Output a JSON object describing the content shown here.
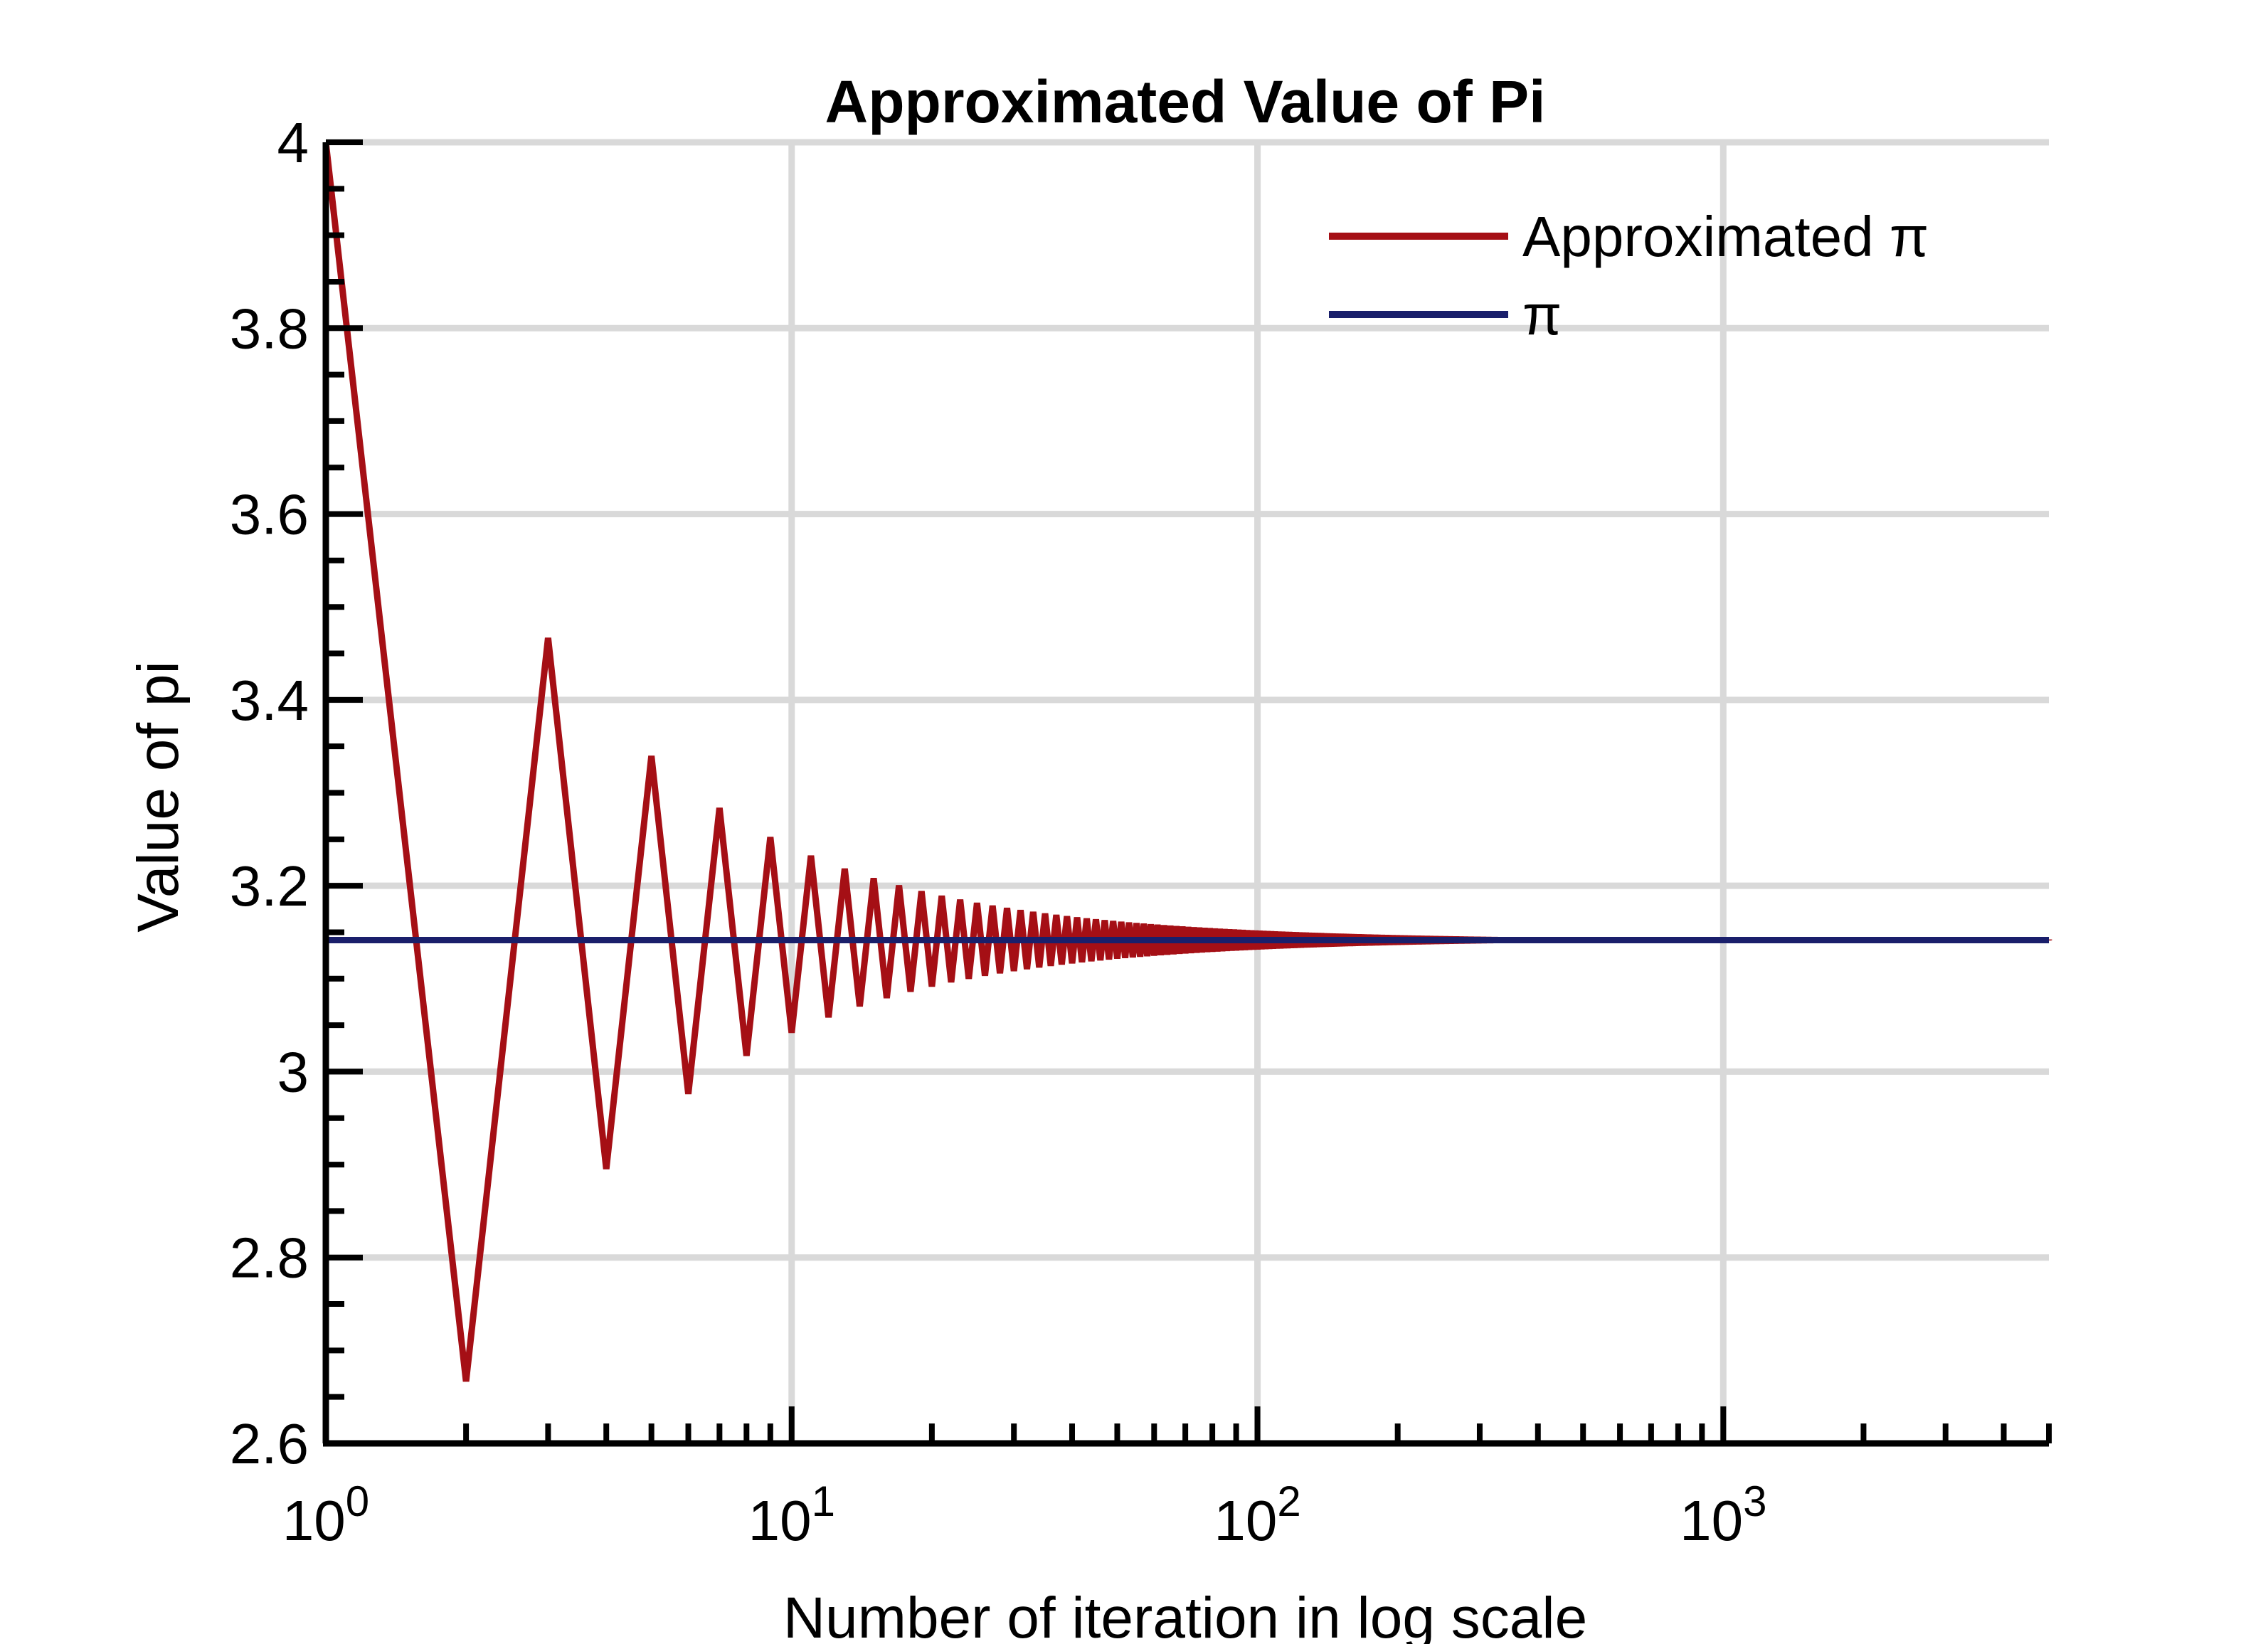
{
  "chart_data": {
    "type": "line",
    "title": "Approximated Value of Pi",
    "xlabel": "Number of iteration in log scale",
    "ylabel": "Value of pi",
    "x_scale": "log",
    "xlim": [
      1,
      5000
    ],
    "ylim": [
      2.6,
      4.0
    ],
    "x_ticks": [
      {
        "base": "10",
        "exp": "0",
        "value": 1
      },
      {
        "base": "10",
        "exp": "1",
        "value": 10
      },
      {
        "base": "10",
        "exp": "2",
        "value": 100
      },
      {
        "base": "10",
        "exp": "3",
        "value": 1000
      }
    ],
    "y_ticks": [
      "2.6",
      "2.8",
      "3",
      "3.2",
      "3.4",
      "3.6",
      "3.8",
      "4"
    ],
    "grid": true,
    "legend_position": "top-right",
    "series": [
      {
        "name": "Approximated π",
        "color": "#a50f15",
        "formula": "Leibniz partial sums 4·Σ(-1)^k/(2k+1), k = 0..n-1",
        "x_range": [
          1,
          5000
        ],
        "sample_values": [
          [
            1,
            4.0
          ],
          [
            2,
            2.6667
          ],
          [
            3,
            3.4667
          ],
          [
            4,
            2.8952
          ],
          [
            5,
            3.3397
          ],
          [
            6,
            2.976
          ],
          [
            7,
            3.2837
          ],
          [
            8,
            3.0171
          ],
          [
            9,
            3.2524
          ],
          [
            10,
            3.0418
          ]
        ]
      },
      {
        "name": "π",
        "color": "#1a1f6b",
        "value": 3.14159
      }
    ]
  }
}
